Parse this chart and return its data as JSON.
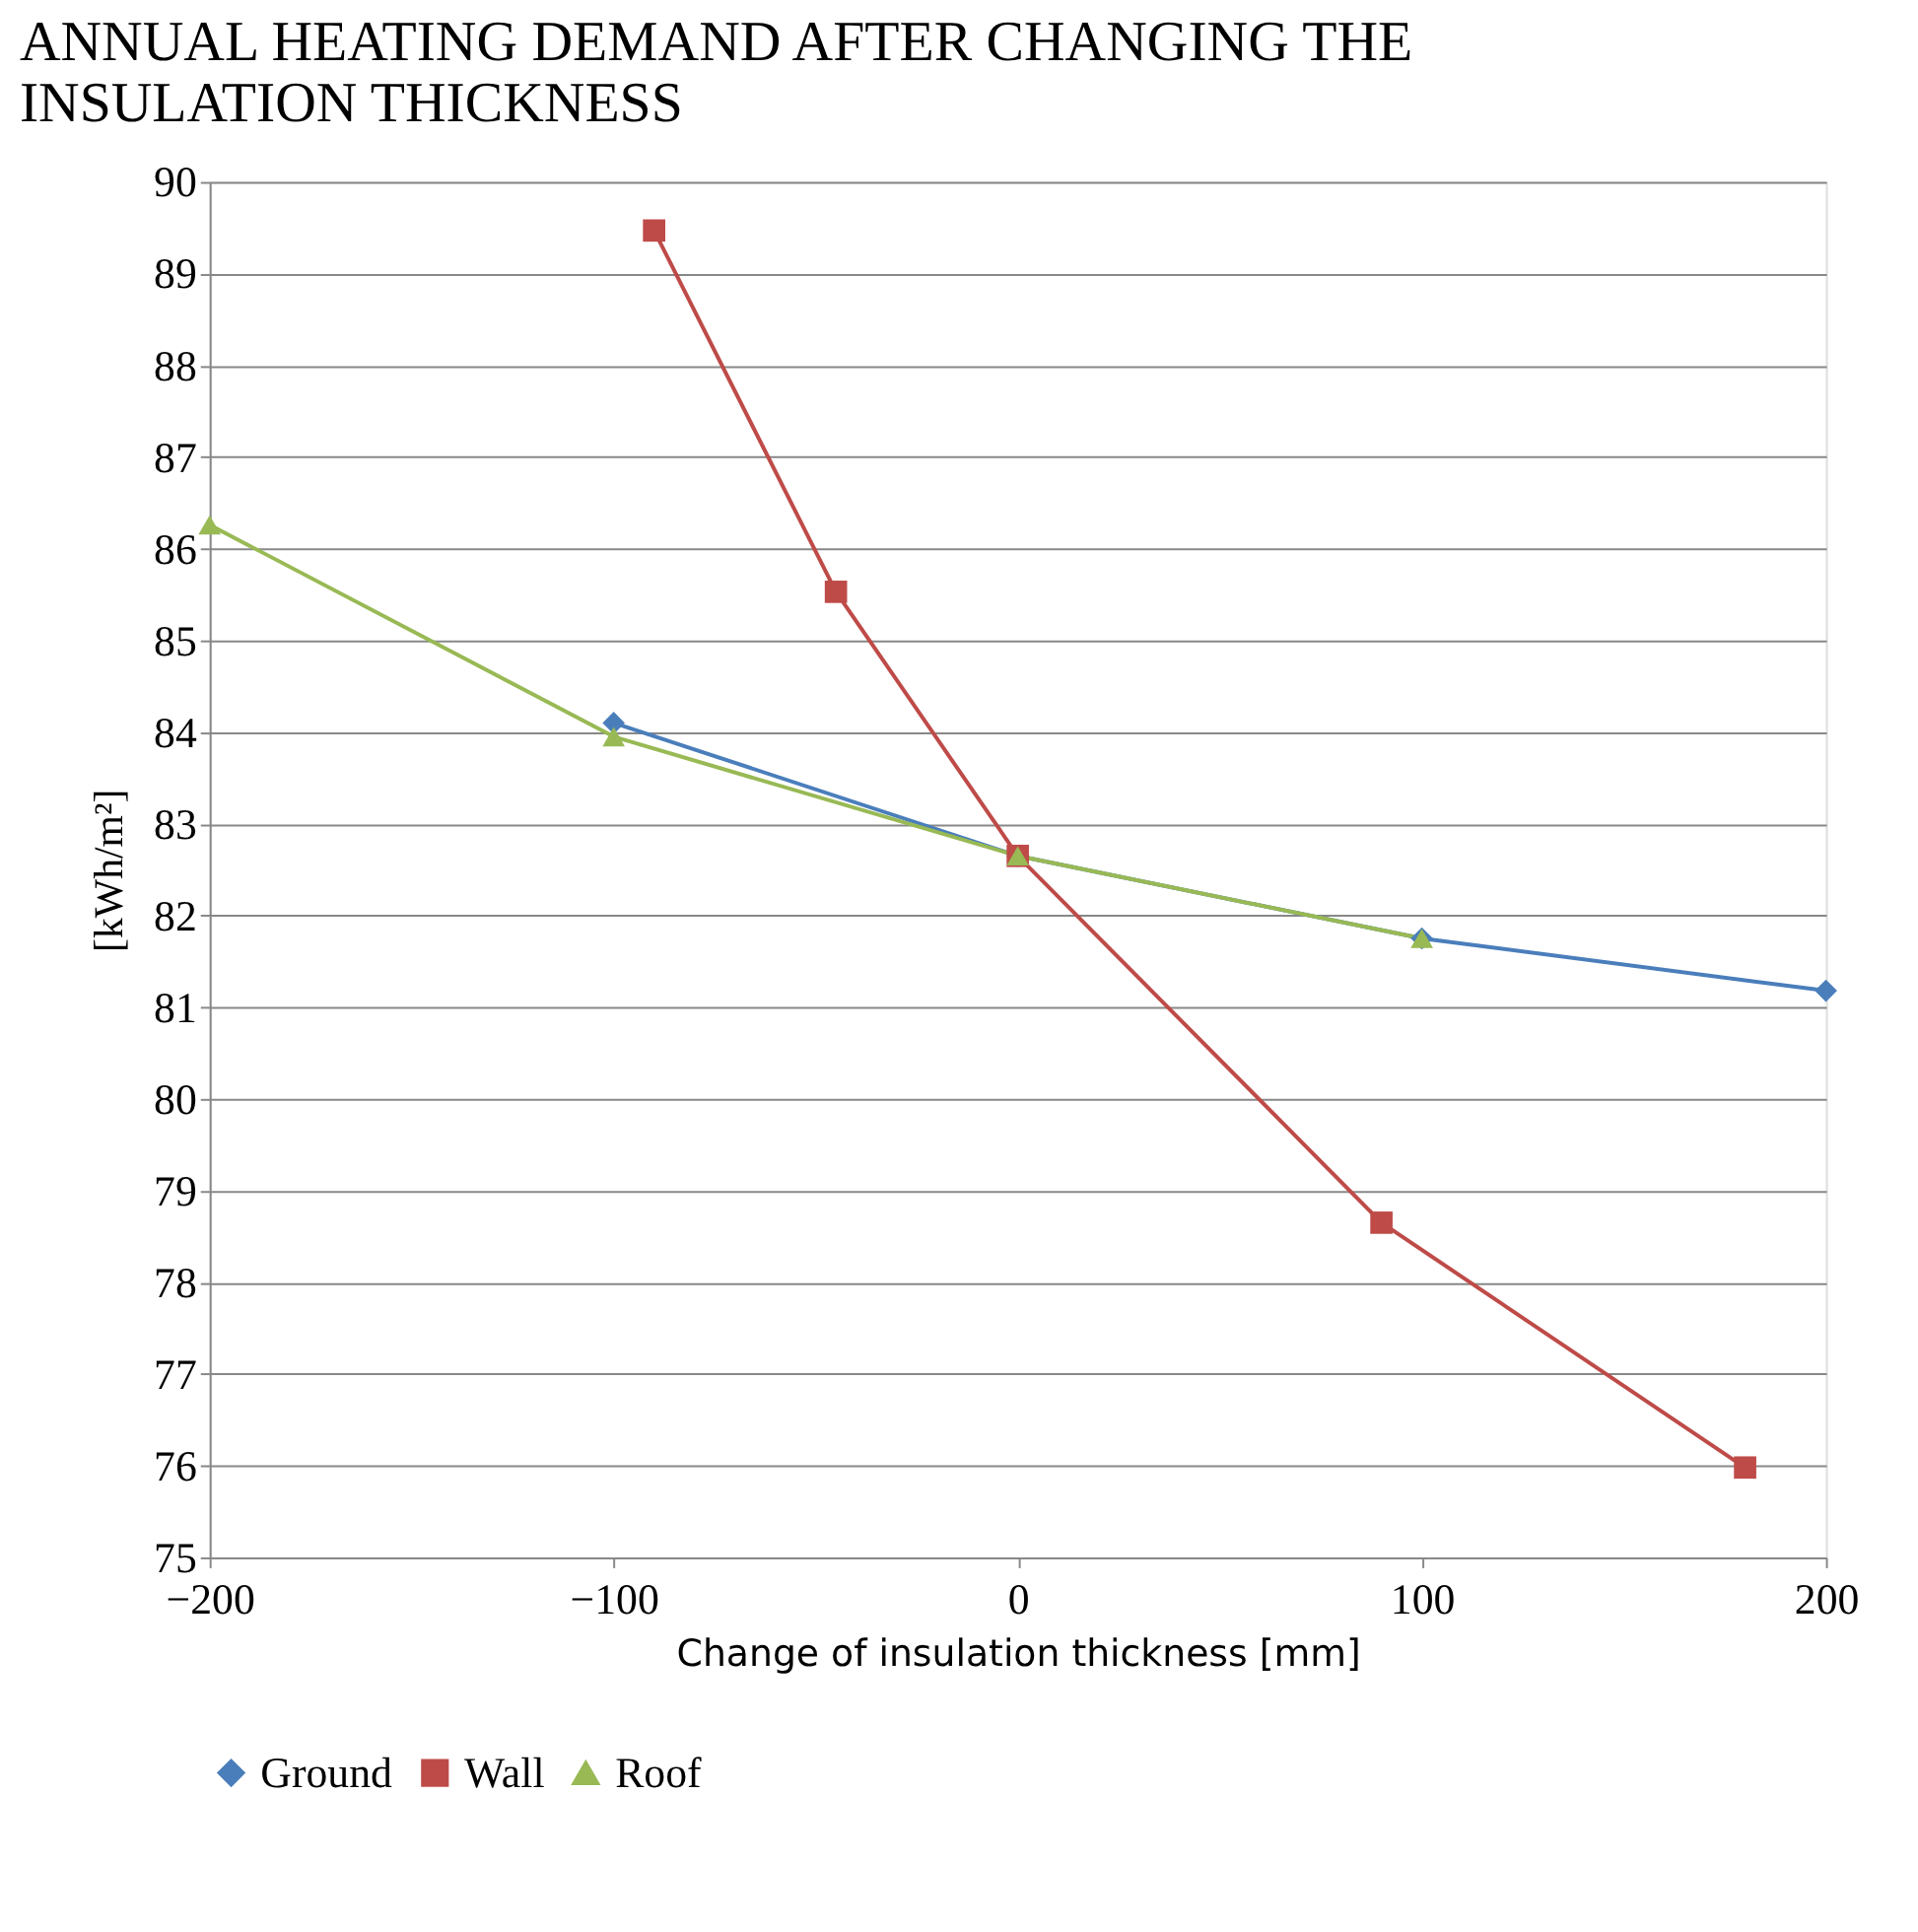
{
  "chart_data": {
    "type": "line",
    "title": "ANNUAL HEATING DEMAND AFTER CHANGING THE INSULATION THICKNESS",
    "xlabel": "Change of insulation thickness [mm]",
    "ylabel": "[kWh/m²]",
    "series": [
      {
        "name": "Ground",
        "color": "#4a7ebb",
        "marker": "diamond",
        "x": [
          -100,
          0,
          100,
          200
        ],
        "values": [
          84.1,
          82.65,
          81.75,
          81.18
        ]
      },
      {
        "name": "Wall",
        "color": "#be4b48",
        "marker": "square",
        "x": [
          -90,
          -45,
          0,
          90,
          180
        ],
        "values": [
          89.47,
          85.53,
          82.65,
          78.65,
          75.98
        ]
      },
      {
        "name": "Roof",
        "color": "#98b954",
        "marker": "triangle",
        "x": [
          -200,
          -100,
          0,
          100
        ],
        "values": [
          86.26,
          83.95,
          82.65,
          81.75
        ]
      }
    ],
    "xlim": [
      -200,
      200
    ],
    "xticks": [
      -200,
      -100,
      0,
      100,
      200
    ],
    "ylim": [
      75,
      90
    ],
    "yticks": [
      75,
      76,
      77,
      78,
      79,
      80,
      81,
      82,
      83,
      84,
      85,
      86,
      87,
      88,
      89,
      90
    ],
    "grid": "y",
    "legend": "bottom",
    "line_style": "solid"
  }
}
